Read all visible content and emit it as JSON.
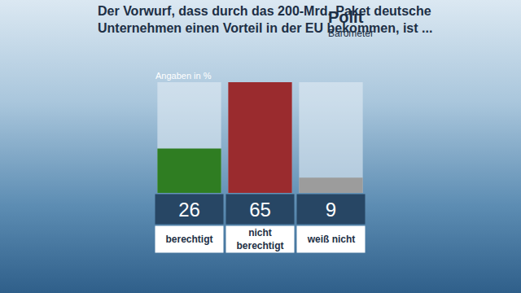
{
  "chart_data": {
    "type": "bar",
    "title": "Der Vorwurf, dass durch das 200-Mrd.-Paket deutsche Unternehmen einen Vorteil in der EU bekommen, ist ...",
    "subtitle": "Angaben in %",
    "logo": [
      "Polit",
      "Barometer"
    ],
    "categories": [
      "berechtigt",
      "nicht berechtigt",
      "weiß nicht"
    ],
    "values": [
      26,
      65,
      9
    ],
    "colors": [
      "#2f7d22",
      "#9a2b2e",
      "#9c9c9c"
    ],
    "ylim": [
      0,
      65
    ],
    "yticks": [],
    "grid": false,
    "tick_labels": false,
    "data_labels": true
  }
}
